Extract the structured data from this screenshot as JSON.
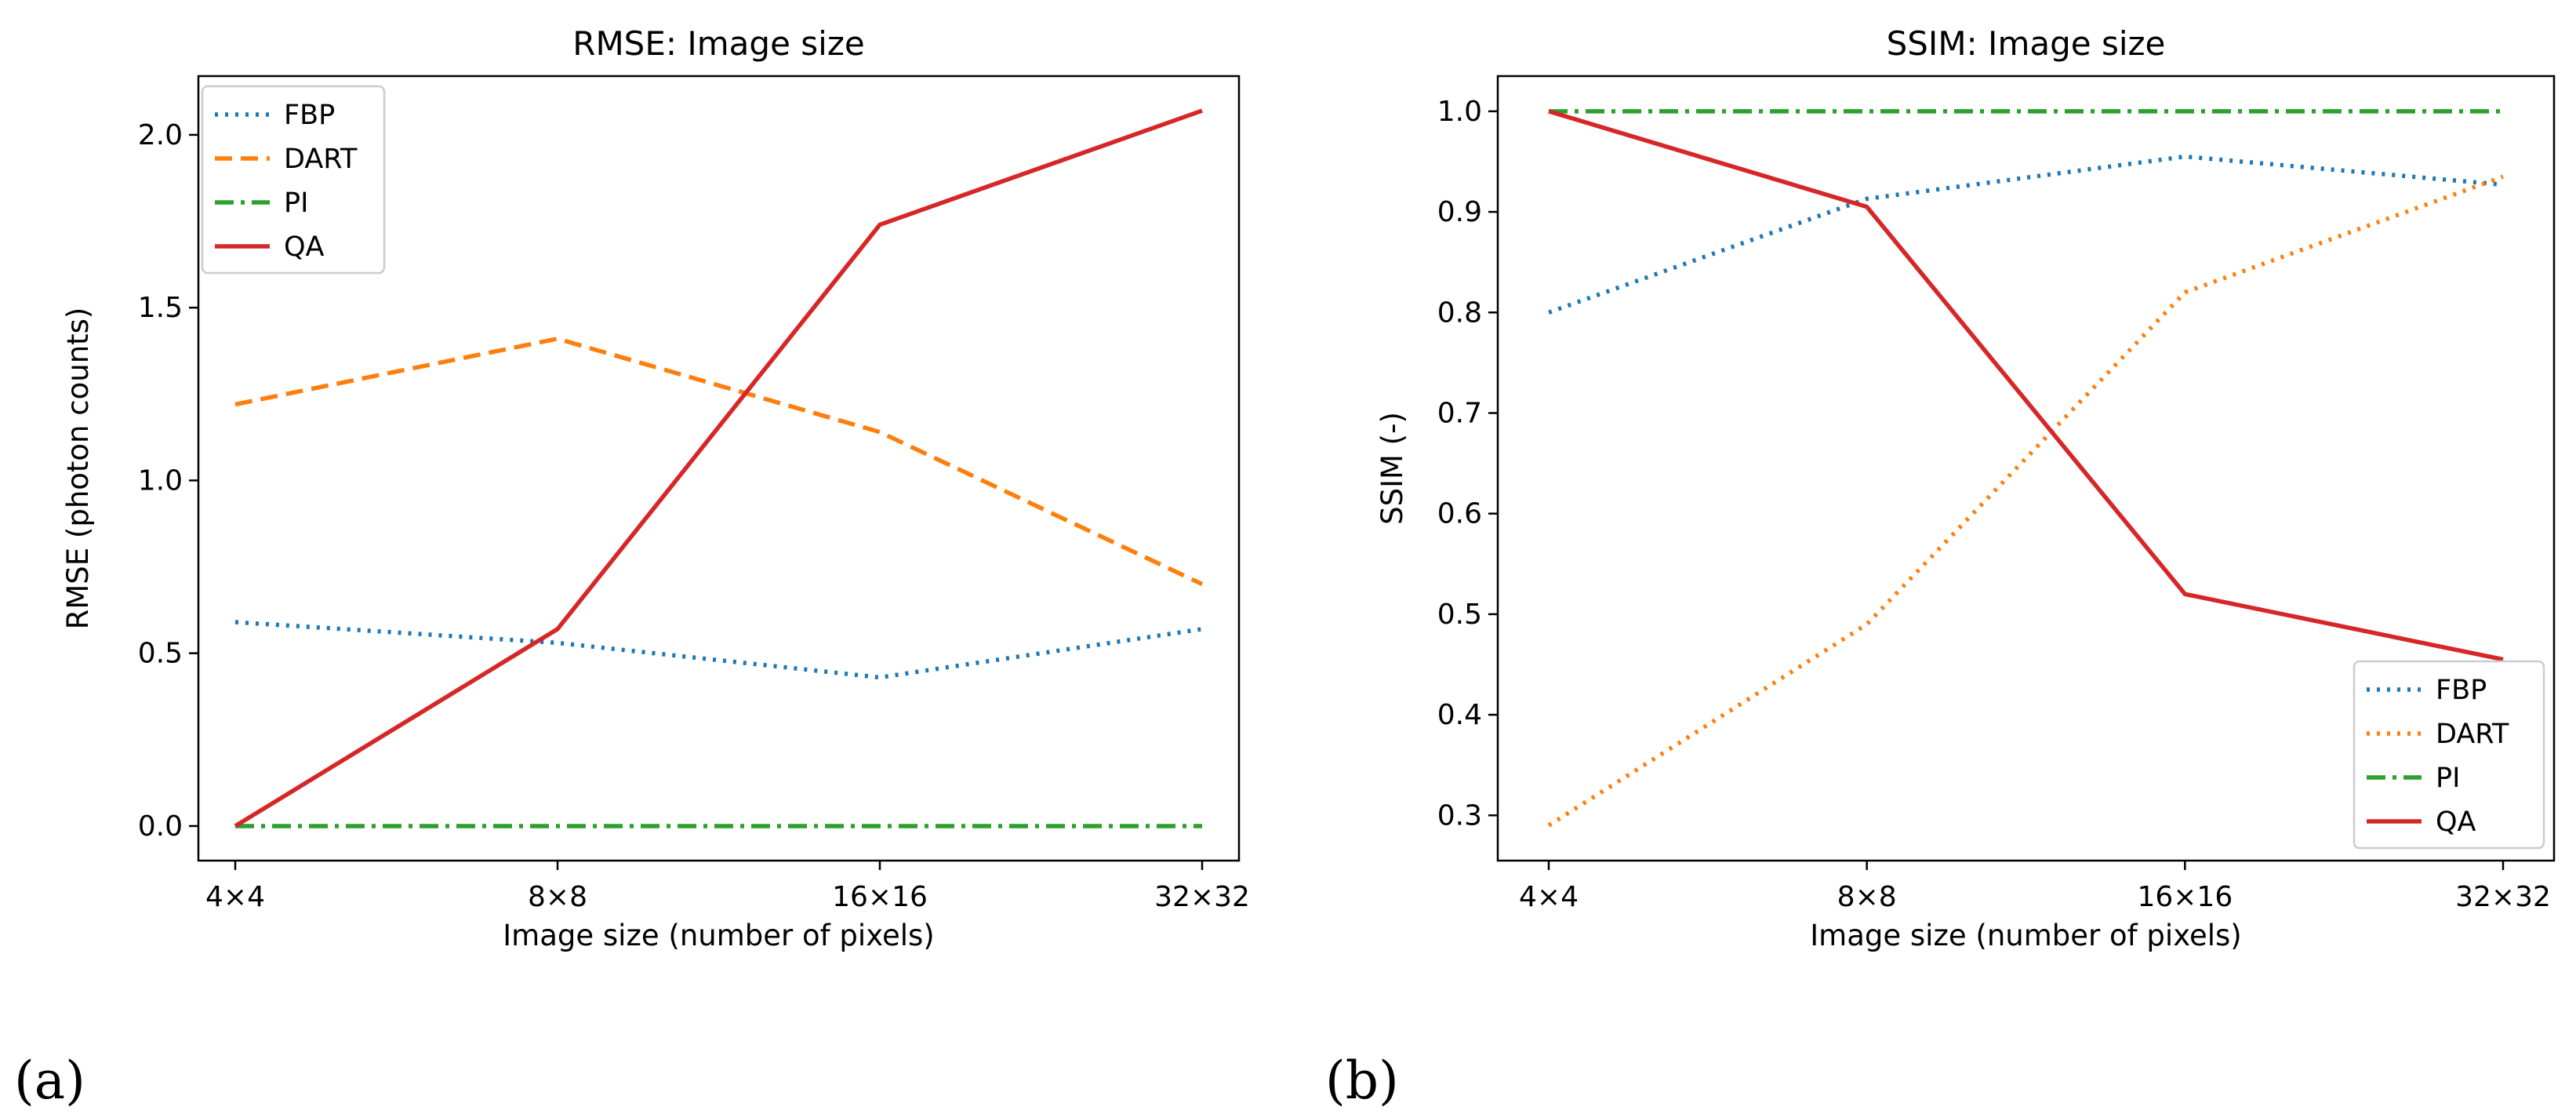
{
  "chart_data": [
    {
      "type": "line",
      "title": "RMSE: Image size",
      "xlabel": "Image size (number of pixels)",
      "ylabel": "RMSE (photon counts)",
      "categories": [
        "4×4",
        "8×8",
        "16×16",
        "32×32"
      ],
      "ylim": [
        -0.1,
        2.17
      ],
      "yticks": [
        0.0,
        0.5,
        1.0,
        1.5,
        2.0
      ],
      "ytick_labels": [
        "0.0",
        "0.5",
        "1.0",
        "1.5",
        "2.0"
      ],
      "legend_position": "top-left",
      "panel_label": "(a)",
      "series": [
        {
          "name": "FBP",
          "values": [
            0.59,
            0.53,
            0.43,
            0.57
          ],
          "color": "#1f77b4",
          "style": "dotted"
        },
        {
          "name": "DART",
          "values": [
            1.22,
            1.41,
            1.14,
            0.7
          ],
          "color": "#ff7f0e",
          "style": "dashed"
        },
        {
          "name": "PI",
          "values": [
            0.0,
            0.0,
            0.0,
            0.0
          ],
          "color": "#2ca02c",
          "style": "dashdot"
        },
        {
          "name": "QA",
          "values": [
            0.0,
            0.57,
            1.74,
            2.07
          ],
          "color": "#d62728",
          "style": "solid"
        }
      ]
    },
    {
      "type": "line",
      "title": "SSIM: Image size",
      "xlabel": "Image size (number of pixels)",
      "ylabel": "SSIM (-)",
      "categories": [
        "4×4",
        "8×8",
        "16×16",
        "32×32"
      ],
      "ylim": [
        0.255,
        1.035
      ],
      "yticks": [
        0.3,
        0.4,
        0.5,
        0.6,
        0.7,
        0.8,
        0.9,
        1.0
      ],
      "ytick_labels": [
        "0.3",
        "0.4",
        "0.5",
        "0.6",
        "0.7",
        "0.8",
        "0.9",
        "1.0"
      ],
      "legend_position": "bottom-right",
      "panel_label": "(b)",
      "series": [
        {
          "name": "FBP",
          "values": [
            0.8,
            0.913,
            0.955,
            0.927
          ],
          "color": "#1f77b4",
          "style": "dotted"
        },
        {
          "name": "DART",
          "values": [
            0.29,
            0.49,
            0.82,
            0.935
          ],
          "color": "#ff7f0e",
          "style": "dotted"
        },
        {
          "name": "PI",
          "values": [
            1.0,
            1.0,
            1.0,
            1.0
          ],
          "color": "#2ca02c",
          "style": "dashdot"
        },
        {
          "name": "QA",
          "values": [
            1.0,
            0.905,
            0.52,
            0.455
          ],
          "color": "#d62728",
          "style": "solid"
        }
      ]
    }
  ]
}
